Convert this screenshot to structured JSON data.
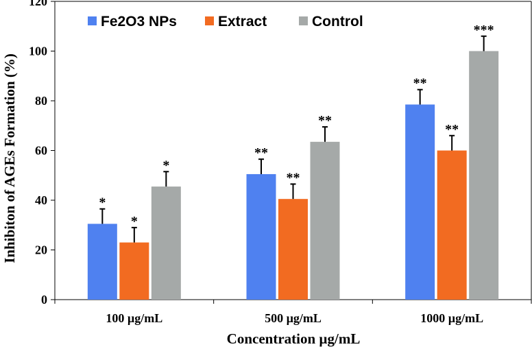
{
  "chart_data": {
    "type": "bar",
    "title": "",
    "xlabel": "Concentration µg/mL",
    "ylabel": "Inhibiton of AGEs Formation (%)",
    "ylim": [
      0,
      120
    ],
    "yticks": [
      0,
      20,
      40,
      60,
      80,
      100,
      120
    ],
    "categories": [
      "100 µg/mL",
      "500 µg/mL",
      "1000 µg/mL"
    ],
    "legend_position": "top-left",
    "series": [
      {
        "name": "Fe2O3 NPs",
        "color": "#4F81F0",
        "values": [
          30.5,
          50.5,
          78.5
        ],
        "errors": [
          6.0,
          6.0,
          6.0
        ],
        "significance": [
          "*",
          "**",
          "**"
        ]
      },
      {
        "name": "Extract",
        "color": "#F26B21",
        "values": [
          23.0,
          40.5,
          60.0
        ],
        "errors": [
          6.0,
          6.0,
          6.0
        ],
        "significance": [
          "*",
          "**",
          "**"
        ]
      },
      {
        "name": "Control",
        "color": "#A5A9A8",
        "values": [
          45.5,
          63.5,
          100.0
        ],
        "errors": [
          6.0,
          6.0,
          6.0
        ],
        "significance": [
          "*",
          "**",
          "***"
        ]
      }
    ]
  }
}
